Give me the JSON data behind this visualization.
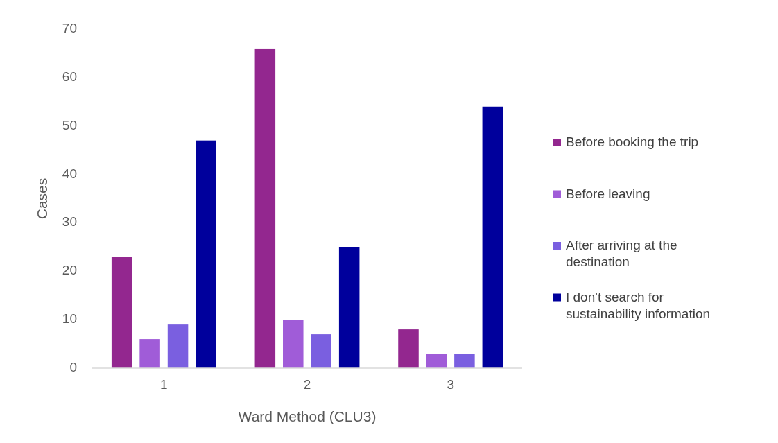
{
  "chart_data": {
    "type": "bar",
    "xlabel": "Ward Method (CLU3)",
    "ylabel": "Cases",
    "categories": [
      "1",
      "2",
      "3"
    ],
    "series": [
      {
        "name": "Before booking the trip",
        "color": "#93278f",
        "values": [
          23,
          66,
          8
        ]
      },
      {
        "name": "Before leaving",
        "color": "#a05cd8",
        "values": [
          6,
          10,
          3
        ]
      },
      {
        "name": "After arriving at the destination",
        "color": "#7a5fe0",
        "values": [
          9,
          7,
          3
        ]
      },
      {
        "name": "I don't search for sustainability information",
        "color": "#00009c",
        "values": [
          47,
          25,
          54
        ]
      }
    ],
    "ylim": [
      0,
      70
    ],
    "yticks": [
      0,
      10,
      20,
      30,
      40,
      50,
      60,
      70
    ],
    "grid": false,
    "legend": "right"
  }
}
